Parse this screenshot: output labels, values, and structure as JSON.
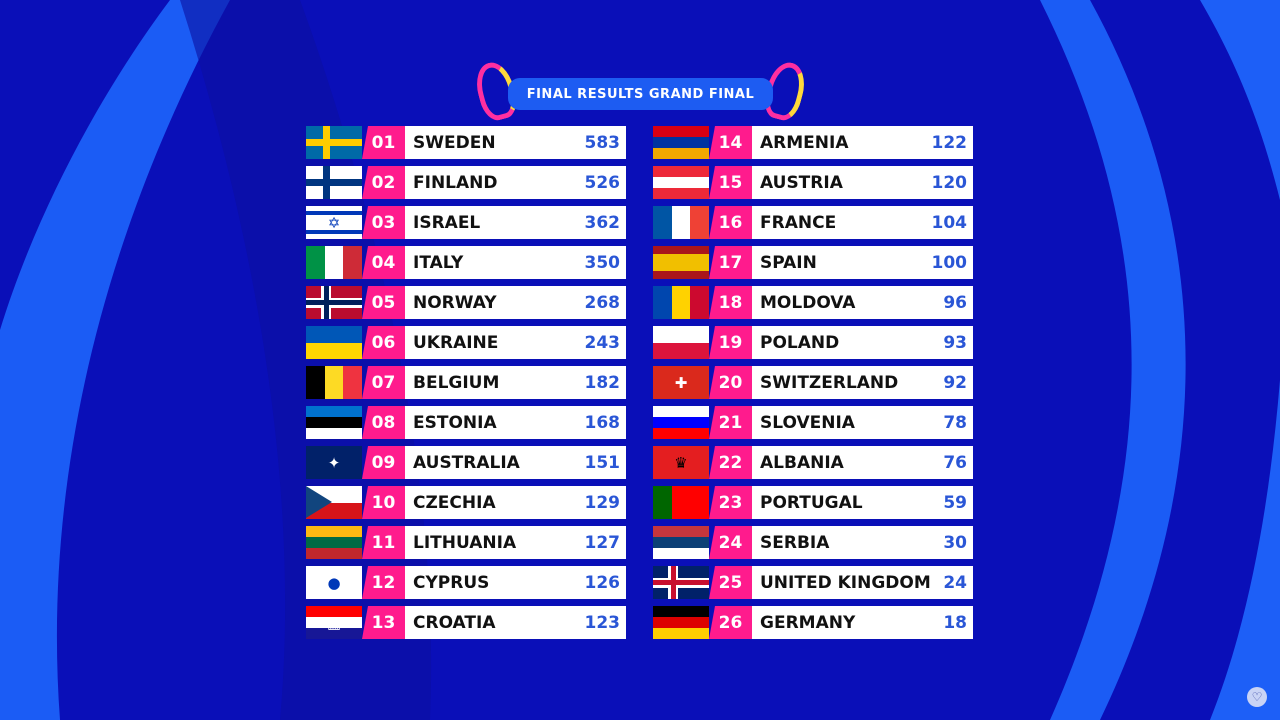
{
  "title": "FINAL RESULTS GRAND FINAL",
  "colors": {
    "background": "#0a0fb8",
    "accent": "#ff1b8d",
    "points": "#2a56d6",
    "banner": "#1d5cf2"
  },
  "results": [
    {
      "rank": "01",
      "country": "SWEDEN",
      "points": "583",
      "flag": {
        "dir": "h",
        "colors": [
          "#006aa7"
        ],
        "cross": "#fecc00"
      }
    },
    {
      "rank": "02",
      "country": "FINLAND",
      "points": "526",
      "flag": {
        "dir": "h",
        "colors": [
          "#ffffff"
        ],
        "cross": "#003580"
      }
    },
    {
      "rank": "03",
      "country": "ISRAEL",
      "points": "362",
      "flag": {
        "dir": "h",
        "colors": [
          "#ffffff",
          "#0038b8",
          "#ffffff",
          "#ffffff",
          "#ffffff",
          "#0038b8",
          "#ffffff"
        ],
        "symbol": "✡"
      }
    },
    {
      "rank": "04",
      "country": "ITALY",
      "points": "350",
      "flag": {
        "dir": "v",
        "colors": [
          "#009246",
          "#ffffff",
          "#ce2b37"
        ]
      }
    },
    {
      "rank": "05",
      "country": "NORWAY",
      "points": "268",
      "flag": {
        "dir": "h",
        "colors": [
          "#ba0c2f"
        ],
        "cross": "#00205b",
        "border": "#ffffff"
      }
    },
    {
      "rank": "06",
      "country": "UKRAINE",
      "points": "243",
      "flag": {
        "dir": "h",
        "colors": [
          "#0057b7",
          "#ffd700"
        ]
      }
    },
    {
      "rank": "07",
      "country": "BELGIUM",
      "points": "182",
      "flag": {
        "dir": "v",
        "colors": [
          "#000000",
          "#fdda24",
          "#ef3340"
        ]
      }
    },
    {
      "rank": "08",
      "country": "ESTONIA",
      "points": "168",
      "flag": {
        "dir": "h",
        "colors": [
          "#0072ce",
          "#000000",
          "#ffffff"
        ]
      }
    },
    {
      "rank": "09",
      "country": "AUSTRALIA",
      "points": "151",
      "flag": {
        "dir": "h",
        "colors": [
          "#012169"
        ],
        "symbol": "✦"
      }
    },
    {
      "rank": "10",
      "country": "CZECHIA",
      "points": "129",
      "flag": {
        "dir": "h",
        "colors": [
          "#ffffff",
          "#d7141a"
        ],
        "triangle": "#11457e"
      }
    },
    {
      "rank": "11",
      "country": "LITHUANIA",
      "points": "127",
      "flag": {
        "dir": "h",
        "colors": [
          "#fdb913",
          "#006a44",
          "#c1272d"
        ]
      }
    },
    {
      "rank": "12",
      "country": "CYPRUS",
      "points": "126",
      "flag": {
        "dir": "h",
        "colors": [
          "#ffffff"
        ],
        "symbol": "●"
      }
    },
    {
      "rank": "13",
      "country": "CROATIA",
      "points": "123",
      "flag": {
        "dir": "h",
        "colors": [
          "#ff0000",
          "#ffffff",
          "#171796"
        ],
        "symbol": "▦"
      }
    },
    {
      "rank": "14",
      "country": "ARMENIA",
      "points": "122",
      "flag": {
        "dir": "h",
        "colors": [
          "#d90012",
          "#0033a0",
          "#f2a800"
        ]
      }
    },
    {
      "rank": "15",
      "country": "AUSTRIA",
      "points": "120",
      "flag": {
        "dir": "h",
        "colors": [
          "#ed2939",
          "#ffffff",
          "#ed2939"
        ]
      }
    },
    {
      "rank": "16",
      "country": "FRANCE",
      "points": "104",
      "flag": {
        "dir": "v",
        "colors": [
          "#0055a4",
          "#ffffff",
          "#ef4135"
        ]
      }
    },
    {
      "rank": "17",
      "country": "SPAIN",
      "points": "100",
      "flag": {
        "dir": "h",
        "colors": [
          "#aa151b",
          "#f1bf00",
          "#f1bf00",
          "#aa151b"
        ]
      }
    },
    {
      "rank": "18",
      "country": "MOLDOVA",
      "points": "96",
      "flag": {
        "dir": "v",
        "colors": [
          "#0046ae",
          "#ffd200",
          "#cc092f"
        ]
      }
    },
    {
      "rank": "19",
      "country": "POLAND",
      "points": "93",
      "flag": {
        "dir": "h",
        "colors": [
          "#ffffff",
          "#dc143c"
        ]
      }
    },
    {
      "rank": "20",
      "country": "SWITZERLAND",
      "points": "92",
      "flag": {
        "dir": "h",
        "colors": [
          "#da291c"
        ],
        "symbol": "✚"
      }
    },
    {
      "rank": "21",
      "country": "SLOVENIA",
      "points": "78",
      "flag": {
        "dir": "h",
        "colors": [
          "#ffffff",
          "#0000ff",
          "#ff0000"
        ]
      }
    },
    {
      "rank": "22",
      "country": "ALBANIA",
      "points": "76",
      "flag": {
        "dir": "h",
        "colors": [
          "#e41e20"
        ],
        "symbol": "♛"
      }
    },
    {
      "rank": "23",
      "country": "PORTUGAL",
      "points": "59",
      "flag": {
        "dir": "v",
        "colors": [
          "#006600",
          "#ff0000",
          "#ff0000"
        ]
      }
    },
    {
      "rank": "24",
      "country": "SERBIA",
      "points": "30",
      "flag": {
        "dir": "h",
        "colors": [
          "#c6363c",
          "#0c4076",
          "#ffffff"
        ]
      }
    },
    {
      "rank": "25",
      "country": "UNITED KINGDOM",
      "points": "24",
      "flag": {
        "dir": "h",
        "colors": [
          "#012169"
        ],
        "cross": "#c8102e",
        "border": "#ffffff"
      }
    },
    {
      "rank": "26",
      "country": "GERMANY",
      "points": "18",
      "flag": {
        "dir": "h",
        "colors": [
          "#000000",
          "#dd0000",
          "#ffce00"
        ]
      }
    }
  ],
  "favorite_icon": "heart-icon"
}
